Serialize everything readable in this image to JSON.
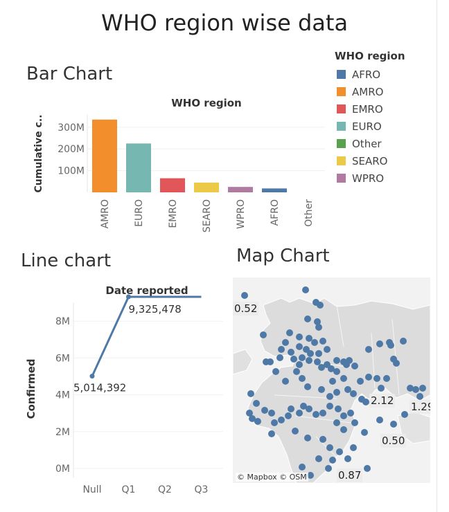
{
  "page": {
    "title": "WHO region wise data"
  },
  "bar": {
    "section_title": "Bar Chart",
    "header": "WHO region",
    "ylabel": "Cumulative c..",
    "ticks": [
      "100M",
      "200M",
      "300M"
    ]
  },
  "legend": {
    "title": "WHO region",
    "items": [
      {
        "label": "AFRO",
        "color": "#4e79a7"
      },
      {
        "label": "AMRO",
        "color": "#f28e2b"
      },
      {
        "label": "EMRO",
        "color": "#e15759"
      },
      {
        "label": "EURO",
        "color": "#76b7b2"
      },
      {
        "label": "Other",
        "color": "#59a14f"
      },
      {
        "label": "SEARO",
        "color": "#edc948"
      },
      {
        "label": "WPRO",
        "color": "#b07aa1"
      }
    ]
  },
  "line": {
    "section_title": "Line chart",
    "header": "Date reported",
    "ylabel": "Confirmed",
    "ticks": [
      "0M",
      "2M",
      "4M",
      "6M",
      "8M"
    ],
    "point_labels": [
      "5,014,392",
      "9,325,478"
    ]
  },
  "map": {
    "section_title": "Map Chart",
    "attribution": "© Mapbox © OSM",
    "labels": [
      "0.52",
      "2.12",
      "1.29",
      "0.50",
      "0.87"
    ]
  },
  "chart_data": [
    {
      "type": "bar",
      "title": "WHO region",
      "ylabel": "Cumulative c..",
      "categories": [
        "AMRO",
        "EURO",
        "EMRO",
        "SEARO",
        "WPRO",
        "AFRO",
        "Other"
      ],
      "values": [
        335,
        225,
        65,
        45,
        25,
        18,
        0
      ],
      "value_unit": "M",
      "colors": [
        "#f28e2b",
        "#76b7b2",
        "#e15759",
        "#edc948",
        "#b07aa1",
        "#4e79a7",
        "#59a14f"
      ],
      "ylim": [
        0,
        360
      ],
      "legend": "right"
    },
    {
      "type": "line",
      "title": "Date reported",
      "ylabel": "Confirmed",
      "categories": [
        "Null",
        "Q1",
        "Q2",
        "Q3"
      ],
      "values": [
        5014392,
        9325478,
        9325478,
        9325478
      ],
      "ylim": [
        0,
        10500000
      ],
      "color": "#4e79a7"
    }
  ]
}
